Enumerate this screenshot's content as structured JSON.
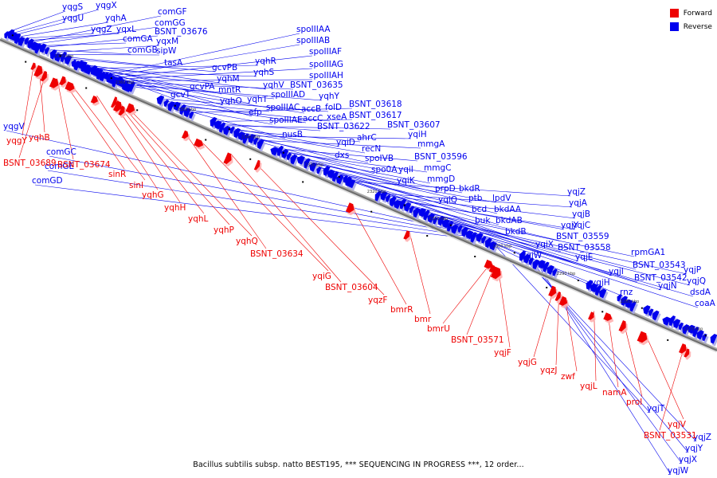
{
  "legend": {
    "forward_label": "Forward",
    "reverse_label": "Reverse",
    "forward_color": "#ee0000",
    "reverse_color": "#0000ee"
  },
  "caption": "Bacillus subtilis subsp. natto BEST195, *** SEQUENCING IN PROGRESS ***, 12 order...",
  "kbp_ticks": [
    "2370 kbp",
    "2360 kbp",
    "2350 kbp",
    "2340 kbp",
    "2330 kbp",
    "2320 kbp",
    "2310 kbp",
    "2300 kbp",
    "2290 kbp",
    "2280 kbp",
    "2270 kbp"
  ],
  "reverse_genes": [
    "yqgS",
    "yqgX",
    "yqgU",
    "yqhA",
    "yqgZ",
    "yqxL",
    "comGF",
    "comGG",
    "comGA",
    "BSNT_03676",
    "comGB",
    "yqxM",
    "sipW",
    "tasA",
    "gcvPB",
    "gcvT",
    "gcvPA",
    "yqhM",
    "mntR",
    "yqhO",
    "yqhR",
    "yqhS",
    "yqhV",
    "yqhT",
    "efp",
    "spoIIIAA",
    "spoIIIAB",
    "spoIIIAF",
    "spoIIIAG",
    "spoIIIAH",
    "BSNT_03635",
    "spoIIIAD",
    "yqhY",
    "accB",
    "folD",
    "spoIIIAC",
    "accC",
    "xseA",
    "spoIIIAE",
    "nusB",
    "BSNT_03618",
    "BSNT_03617",
    "BSNT_03622",
    "BSNT_03607",
    "yqiD",
    "ahrC",
    "recN",
    "dxs",
    "yqiH",
    "spoIVB",
    "mmgA",
    "spo0A",
    "BSNT_03596",
    "yqiI",
    "mmgC",
    "yqiK",
    "mmgD",
    "prpD",
    "bkdR",
    "yqiQ",
    "ptb",
    "bcd",
    "lpdV",
    "buk",
    "bkdAA",
    "bkdAB",
    "bkdB",
    "yqjZ",
    "yqjA",
    "yqjB",
    "yqjY",
    "yqjC",
    "yqiX",
    "BSNT_03559",
    "BSNT_03558",
    "yqiW",
    "yqjE",
    "rpmGA1",
    "yqjI",
    "BSNT_03543",
    "BSNT_03542",
    "yqjP",
    "yqjH",
    "yqjQ",
    "rnz",
    "yqjN",
    "dsdA",
    "coaA",
    "yqgV",
    "comGC",
    "comGE",
    "comGD",
    "yqjT",
    "yqjZ",
    "yqjY",
    "yqjX",
    "yqjW"
  ],
  "forward_genes": [
    "yqgY",
    "yqhB",
    "BSNT_03689",
    "BSNT_03674",
    "sinR",
    "sinI",
    "yqhG",
    "yqhH",
    "yqhL",
    "yqhP",
    "yqhQ",
    "BSNT_03634",
    "yqiG",
    "BSNT_03604",
    "yqzF",
    "bmrR",
    "bmr",
    "bmrU",
    "BSNT_03571",
    "yqjF",
    "yqjG",
    "yqzJ",
    "zwf",
    "yqjL",
    "namA",
    "proI",
    "yqjV",
    "BSNT_03531"
  ]
}
